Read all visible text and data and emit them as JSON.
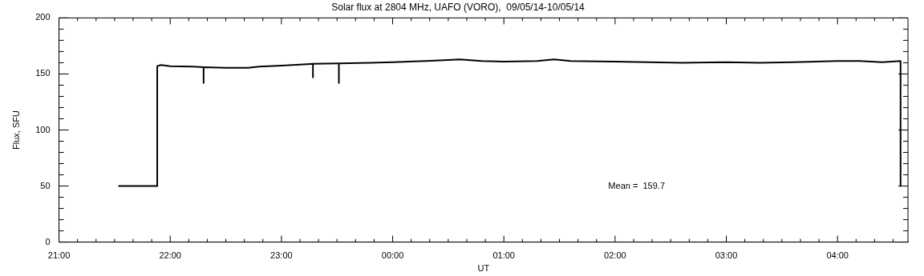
{
  "chart_data": {
    "type": "line",
    "title": "Solar flux at 2804 MHz, UAFO (VORO),  09/05/14-10/05/14",
    "xlabel": "UT",
    "ylabel": "Flux, SFU",
    "annotations": [
      "Mean =  159.7"
    ],
    "marker": "none",
    "line_style": "solid",
    "xlim": [
      "--05-09T21:00",
      "--05-10T04:38"
    ],
    "ylim": [
      0,
      200
    ],
    "xticks": [
      {
        "value": "--05-09T21:00",
        "label": "21:00"
      },
      {
        "value": "--05-09T21:10",
        "label": null
      },
      {
        "value": "--05-09T21:20",
        "label": null
      },
      {
        "value": "--05-09T21:30",
        "label": null
      },
      {
        "value": "--05-09T21:40",
        "label": null
      },
      {
        "value": "--05-09T21:50",
        "label": null
      },
      {
        "value": "--05-09T22:00",
        "label": "22:00"
      },
      {
        "value": "--05-09T22:10",
        "label": null
      },
      {
        "value": "--05-09T22:20",
        "label": null
      },
      {
        "value": "--05-09T22:30",
        "label": null
      },
      {
        "value": "--05-09T22:40",
        "label": null
      },
      {
        "value": "--05-09T22:50",
        "label": null
      },
      {
        "value": "--05-09T23:00",
        "label": "23:00"
      },
      {
        "value": "--05-09T23:10",
        "label": null
      },
      {
        "value": "--05-09T23:20",
        "label": null
      },
      {
        "value": "--05-09T23:30",
        "label": null
      },
      {
        "value": "--05-09T23:40",
        "label": null
      },
      {
        "value": "--05-09T23:50",
        "label": null
      },
      {
        "value": "--05-10T00:00",
        "label": "00:00"
      },
      {
        "value": "--05-10T00:10",
        "label": null
      },
      {
        "value": "--05-10T00:20",
        "label": null
      },
      {
        "value": "--05-10T00:30",
        "label": null
      },
      {
        "value": "--05-10T00:40",
        "label": null
      },
      {
        "value": "--05-10T00:50",
        "label": null
      },
      {
        "value": "--05-10T01:00",
        "label": "01:00"
      },
      {
        "value": "--05-10T01:10",
        "label": null
      },
      {
        "value": "--05-10T01:20",
        "label": null
      },
      {
        "value": "--05-10T01:30",
        "label": null
      },
      {
        "value": "--05-10T01:40",
        "label": null
      },
      {
        "value": "--05-10T01:50",
        "label": null
      },
      {
        "value": "--05-10T02:00",
        "label": "02:00"
      },
      {
        "value": "--05-10T02:10",
        "label": null
      },
      {
        "value": "--05-10T02:20",
        "label": null
      },
      {
        "value": "--05-10T02:30",
        "label": null
      },
      {
        "value": "--05-10T02:40",
        "label": null
      },
      {
        "value": "--05-10T02:50",
        "label": null
      },
      {
        "value": "--05-10T03:00",
        "label": "03:00"
      },
      {
        "value": "--05-10T03:10",
        "label": null
      },
      {
        "value": "--05-10T03:20",
        "label": null
      },
      {
        "value": "--05-10T03:30",
        "label": null
      },
      {
        "value": "--05-10T03:40",
        "label": null
      },
      {
        "value": "--05-10T03:50",
        "label": null
      },
      {
        "value": "--05-10T04:00",
        "label": "04:00"
      },
      {
        "value": "--05-10T04:10",
        "label": null
      },
      {
        "value": "--05-10T04:20",
        "label": null
      },
      {
        "value": "--05-10T04:30",
        "label": null
      }
    ],
    "yticks": [
      0,
      {
        "value": 10,
        "label": null
      },
      {
        "value": 20,
        "label": null
      },
      {
        "value": 30,
        "label": null
      },
      {
        "value": 40,
        "label": null
      },
      50,
      {
        "value": 60,
        "label": null
      },
      {
        "value": 70,
        "label": null
      },
      {
        "value": 80,
        "label": null
      },
      {
        "value": 90,
        "label": null
      },
      100,
      {
        "value": 110,
        "label": null
      },
      {
        "value": 120,
        "label": null
      },
      {
        "value": 130,
        "label": null
      },
      {
        "value": 140,
        "label": null
      },
      150,
      {
        "value": 160,
        "label": null
      },
      {
        "value": 170,
        "label": null
      },
      {
        "value": 180,
        "label": null
      },
      {
        "value": 190,
        "label": null
      },
      200
    ],
    "series": [
      {
        "color": "#000000",
        "x": [
          "--05-09T21:32",
          "--05-09T21:53",
          "--05-09T21:53",
          "--05-09T21:55",
          "--05-09T22:00",
          "--05-09T22:12",
          "--05-09T22:18",
          "--05-09T22:18",
          "--05-09T22:18",
          "--05-09T22:30",
          "--05-09T22:42",
          "--05-09T22:48",
          "--05-09T23:00",
          "--05-09T23:12",
          "--05-09T23:17",
          "--05-09T23:17",
          "--05-09T23:17",
          "--05-09T23:30",
          "--05-09T23:31",
          "--05-09T23:31",
          "--05-09T23:31",
          "--05-09T23:48",
          "--05-10T00:00",
          "--05-10T00:18",
          "--05-10T00:30",
          "--05-10T00:36",
          "--05-10T00:48",
          "--05-10T01:00",
          "--05-10T01:18",
          "--05-10T01:27",
          "--05-10T01:36",
          "--05-10T02:00",
          "--05-10T02:18",
          "--05-10T02:36",
          "--05-10T03:00",
          "--05-10T03:18",
          "--05-10T03:36",
          "--05-10T04:00",
          "--05-10T04:12",
          "--05-10T04:24",
          "--05-10T04:34",
          "--05-10T04:34"
        ],
        "values": [
          50,
          50,
          157,
          158,
          157,
          156.5,
          156,
          142,
          156,
          155.5,
          155.5,
          156.5,
          157.5,
          158.5,
          159,
          147,
          159,
          159.5,
          159.5,
          142,
          159.5,
          160,
          160.5,
          161.5,
          162.5,
          163,
          161.5,
          161,
          161.5,
          163,
          161.5,
          161,
          160.5,
          160,
          160.5,
          160,
          160.5,
          161.5,
          161.5,
          160.5,
          161.5,
          50
        ]
      }
    ]
  }
}
